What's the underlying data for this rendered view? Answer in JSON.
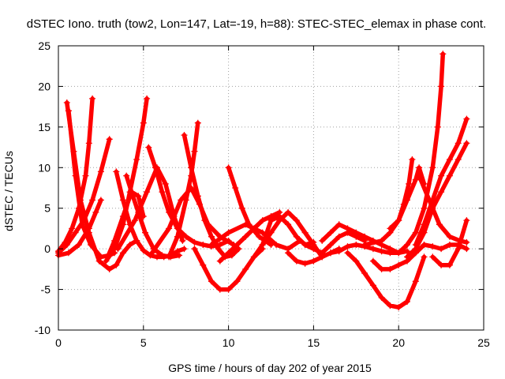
{
  "chart_data": {
    "type": "line",
    "title": "dSTEC Iono. truth (tow2, Lon=147, Lat=-19, h=88): STEC-STEC_elemax in phase cont.",
    "xlabel": "GPS time / hours of day 202 of year 2015",
    "ylabel": "dSTEC  / TECUs",
    "xlim": [
      0,
      25
    ],
    "ylim": [
      -10,
      25
    ],
    "x_ticks": [
      "0",
      "5",
      "10",
      "15",
      "20",
      "25"
    ],
    "y_ticks": [
      "-10",
      "-5",
      "0",
      "5",
      "10",
      "15",
      "20",
      "25"
    ],
    "grid": true,
    "marker": "+",
    "color": "#ff0000",
    "series": [
      {
        "x": [
          0.5,
          0.9,
          1.3,
          1.8,
          2.4,
          3.0,
          3.4,
          3.8,
          4.2,
          4.6
        ],
        "y": [
          18,
          12,
          6,
          2,
          -1.5,
          -2.5,
          -2,
          -0.5,
          0.5,
          1
        ]
      },
      {
        "x": [
          0.6,
          1.0,
          1.4,
          1.9,
          2.5,
          3.0,
          3.3
        ],
        "y": [
          17,
          9,
          3,
          0.5,
          -1,
          -0.8,
          -0.5
        ]
      },
      {
        "x": [
          2.0,
          1.8,
          1.6,
          1.2,
          0.8,
          0.4,
          0.0
        ],
        "y": [
          18.5,
          13,
          9,
          5,
          2.5,
          0.8,
          -0.3
        ]
      },
      {
        "x": [
          0.0,
          0.5,
          1.0,
          1.5,
          2.0,
          2.5,
          3.0
        ],
        "y": [
          -0.5,
          0.5,
          2,
          3.5,
          6,
          9.5,
          13.5
        ]
      },
      {
        "x": [
          0.0,
          0.6,
          1.2,
          1.8,
          2.2,
          2.5
        ],
        "y": [
          -0.8,
          -0.5,
          0.5,
          2.5,
          4.5,
          6
        ]
      },
      {
        "x": [
          3.4,
          3.8,
          4.2,
          4.6,
          5.0,
          5.4,
          5.8,
          6.2,
          6.6,
          7.0,
          7.4
        ],
        "y": [
          9.5,
          6,
          3,
          1,
          -0.2,
          -0.8,
          -1,
          -1,
          -0.8,
          -0.3,
          0
        ]
      },
      {
        "x": [
          4.0,
          4.3,
          4.7,
          5.1,
          5.6,
          6.1,
          6.6,
          7.1
        ],
        "y": [
          9,
          7,
          4.5,
          2,
          0,
          -0.8,
          -1,
          -0.8
        ]
      },
      {
        "x": [
          2.8,
          3.3,
          3.8,
          4.2,
          4.6,
          5.0,
          5.2
        ],
        "y": [
          -1.5,
          0,
          3,
          7,
          11,
          15.5,
          18.5
        ]
      },
      {
        "x": [
          2.9,
          3.3,
          3.8,
          4.3,
          4.7,
          5.0
        ],
        "y": [
          -1,
          1,
          4,
          7,
          6.5,
          4
        ]
      },
      {
        "x": [
          3.5,
          4.5,
          5.2,
          5.8,
          6.3,
          6.8,
          7.3
        ],
        "y": [
          0,
          3.5,
          7,
          10,
          8,
          4,
          1
        ]
      },
      {
        "x": [
          5.3,
          5.7,
          6.1,
          6.5,
          7.0,
          7.5,
          8.0,
          8.5,
          9.0,
          9.5,
          10.0
        ],
        "y": [
          12.5,
          10,
          7,
          4.5,
          2.5,
          1.5,
          0.8,
          0.5,
          0.3,
          0.5,
          1
        ]
      },
      {
        "x": [
          7.4,
          7.8,
          8.2,
          8.6,
          9.0,
          9.4,
          9.8,
          10.2,
          10.6
        ],
        "y": [
          14,
          10,
          6.5,
          3.5,
          1.5,
          0,
          -1,
          -0.8,
          0
        ]
      },
      {
        "x": [
          6.5,
          7.0,
          7.5,
          7.8,
          8.0,
          8.2
        ],
        "y": [
          -1,
          1.5,
          6,
          9,
          12,
          15.5
        ]
      },
      {
        "x": [
          5.5,
          6.5,
          7.2,
          7.8,
          8.3,
          8.8,
          9.5,
          10.3
        ],
        "y": [
          -0.5,
          2.5,
          6,
          7.5,
          5.5,
          3,
          1.5,
          0.5
        ]
      },
      {
        "x": [
          8.0,
          8.5,
          9.0,
          9.5,
          10.0,
          10.5,
          11.0,
          11.5,
          12.0
        ],
        "y": [
          0,
          -2,
          -4,
          -5,
          -5,
          -4,
          -2.5,
          -1,
          0
        ]
      },
      {
        "x": [
          9.5,
          10.0,
          10.5,
          11.0,
          11.5,
          12.0,
          12.5,
          13.0
        ],
        "y": [
          -1.5,
          -0.5,
          0.5,
          1.5,
          2.5,
          3.5,
          4,
          4.5
        ]
      },
      {
        "x": [
          10.0,
          10.4,
          10.8,
          11.2,
          11.8,
          12.5
        ],
        "y": [
          10,
          7.5,
          5,
          3,
          1.5,
          0.5
        ]
      },
      {
        "x": [
          9.0,
          10.0,
          11.0,
          12.0,
          12.8,
          13.5,
          14.2
        ],
        "y": [
          0.5,
          2,
          3,
          2,
          0.5,
          0,
          1
        ]
      },
      {
        "x": [
          11.5,
          12.0,
          12.5,
          13.0,
          13.5,
          14.0,
          14.5,
          15.0,
          15.5
        ],
        "y": [
          -1,
          0.5,
          2,
          3.5,
          4.5,
          3.5,
          2,
          0.5,
          -1
        ]
      },
      {
        "x": [
          12.0,
          12.5,
          13.0,
          13.5,
          14.0,
          14.5,
          15.0
        ],
        "y": [
          0.5,
          3.5,
          4,
          3,
          1.5,
          0.5,
          0.8
        ]
      },
      {
        "x": [
          13.5,
          14.0,
          14.5,
          15.0,
          15.5,
          16.0,
          16.5
        ],
        "y": [
          -0.5,
          -1.5,
          -1.8,
          -1.5,
          -1,
          -0.5,
          0
        ]
      },
      {
        "x": [
          14.5,
          15.0,
          15.5,
          16.0,
          16.5,
          17.0,
          17.5,
          18.0
        ],
        "y": [
          0.5,
          0,
          -0.5,
          0.5,
          1.5,
          2,
          1.5,
          1
        ]
      },
      {
        "x": [
          15.5,
          16.0,
          16.5,
          17.0,
          17.5,
          18.0,
          18.5,
          19.0,
          19.5,
          20.0
        ],
        "y": [
          1,
          2,
          3,
          2.5,
          2,
          1.5,
          1,
          0.5,
          0,
          -0.5
        ]
      },
      {
        "x": [
          16.0,
          16.5,
          17.0,
          17.5,
          18.0,
          18.5,
          19.0,
          19.5,
          20.0,
          20.5
        ],
        "y": [
          -0.5,
          -0.3,
          0.3,
          0.5,
          0.3,
          0,
          -0.3,
          -0.5,
          -0.5,
          -0.3
        ]
      },
      {
        "x": [
          17.0,
          17.5,
          18.0,
          18.5,
          19.0,
          19.5,
          20.0,
          20.5,
          21.0,
          21.5
        ],
        "y": [
          -0.5,
          -1.5,
          -3,
          -4.5,
          -6,
          -7,
          -7.2,
          -6.5,
          -4,
          -1
        ]
      },
      {
        "x": [
          18.5,
          19.0,
          19.5,
          20.0,
          20.5,
          21.0,
          21.5
        ],
        "y": [
          -1.5,
          -2.5,
          -2.5,
          -2,
          -1.5,
          -0.5,
          0.5
        ]
      },
      {
        "x": [
          18.0,
          19.0,
          19.5,
          20.0,
          20.3,
          20.6,
          20.8
        ],
        "y": [
          0.5,
          1,
          2,
          3.5,
          5.5,
          8,
          11
        ]
      },
      {
        "x": [
          19.5,
          20.0,
          20.5,
          21.0,
          21.2,
          21.5
        ],
        "y": [
          2.5,
          3.5,
          6,
          8.5,
          10,
          8
        ]
      },
      {
        "x": [
          20.0,
          20.5,
          21.0,
          21.5,
          22.0,
          22.3,
          22.5,
          22.6
        ],
        "y": [
          -0.5,
          0.5,
          2,
          5,
          10,
          15,
          20,
          24
        ]
      },
      {
        "x": [
          20.5,
          21.0,
          21.5,
          22.0,
          22.5,
          23.0,
          23.5,
          24.0
        ],
        "y": [
          -1,
          0,
          2,
          5,
          7,
          9,
          11,
          13
        ]
      },
      {
        "x": [
          21.0,
          21.5,
          22.0,
          22.5,
          23.0,
          23.5,
          24.0
        ],
        "y": [
          0.5,
          3,
          6,
          9,
          11,
          13,
          16
        ]
      },
      {
        "x": [
          22.0,
          22.5,
          23.0,
          23.5,
          24.0
        ],
        "y": [
          -1,
          -2,
          -2,
          0,
          3.5
        ]
      },
      {
        "x": [
          21.5,
          22.0,
          22.5,
          23.0,
          23.5,
          24.0
        ],
        "y": [
          0.5,
          0.3,
          0,
          0.5,
          0.5,
          0
        ]
      },
      {
        "x": [
          21.2,
          21.8,
          22.4,
          23.0,
          23.6,
          24.0
        ],
        "y": [
          9,
          6,
          3,
          1.5,
          1,
          0.8
        ]
      }
    ]
  }
}
